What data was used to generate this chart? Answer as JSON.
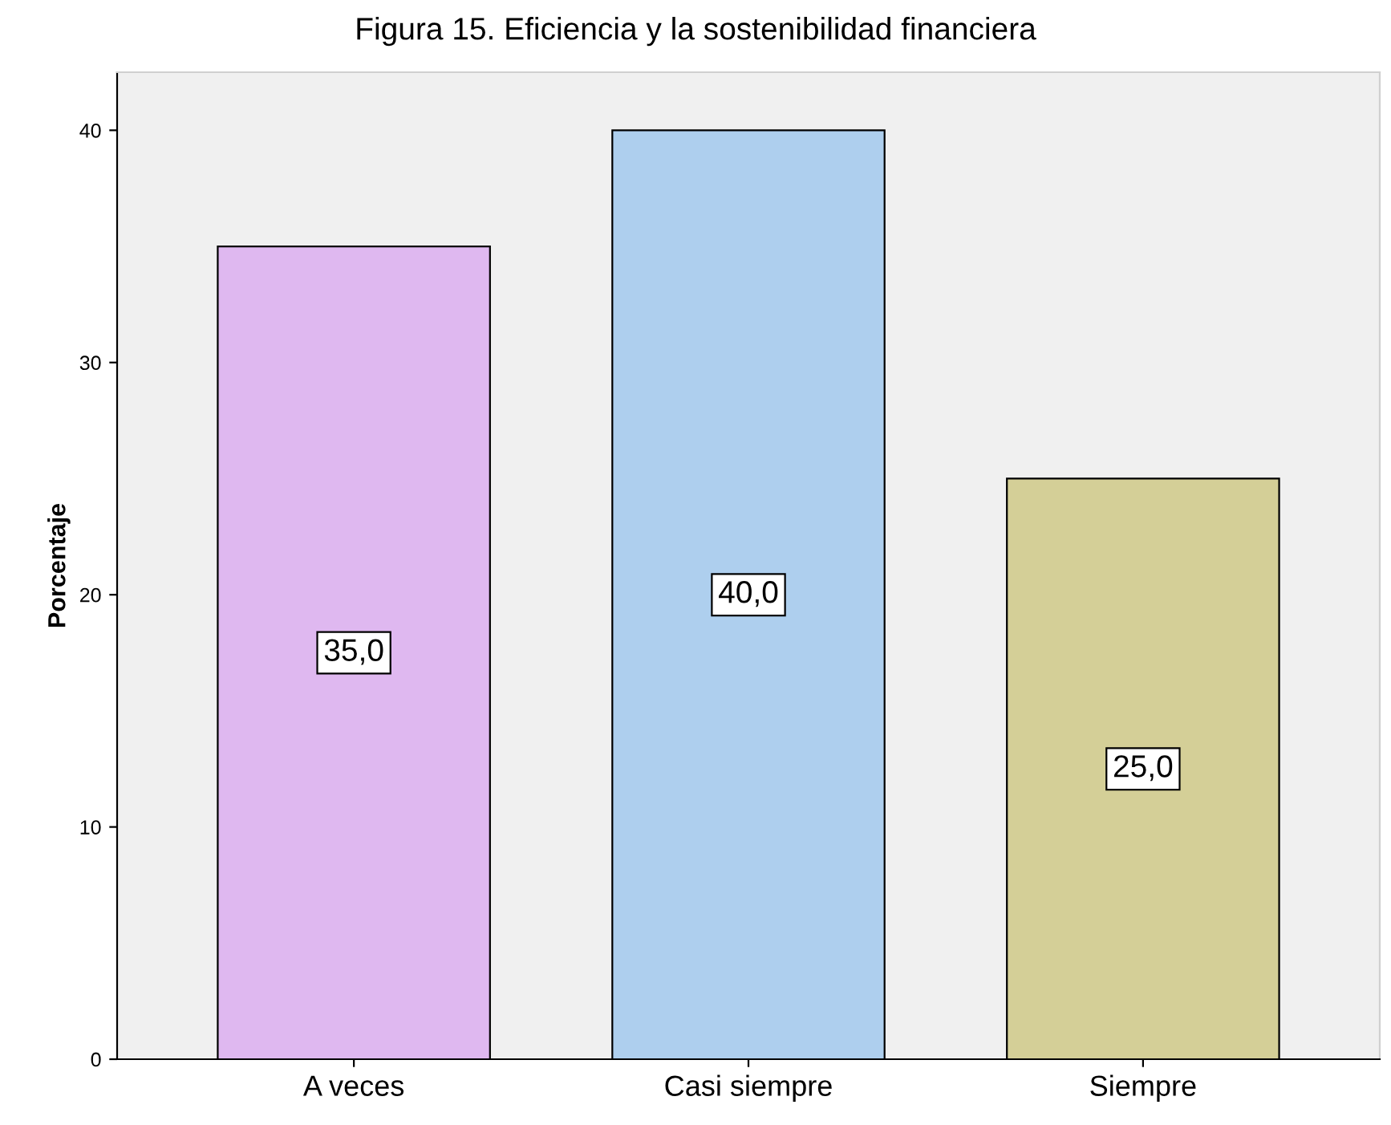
{
  "chart_data": {
    "type": "bar",
    "title": "Figura 15. Eficiencia y la sostenibilidad financiera",
    "ylabel": "Porcentaje",
    "categories": [
      "A veces",
      "Casi siempre",
      "Siempre"
    ],
    "values": [
      35,
      40,
      25
    ],
    "colors": [
      "#dfb8f0",
      "#aecfee",
      "#d4cf97"
    ],
    "value_labels": [
      "35,0",
      "40,0",
      "25,0"
    ],
    "ylim": [
      0,
      42.5
    ],
    "yticks": [
      0,
      10,
      20,
      30,
      40
    ],
    "grid": false,
    "legend": false
  }
}
